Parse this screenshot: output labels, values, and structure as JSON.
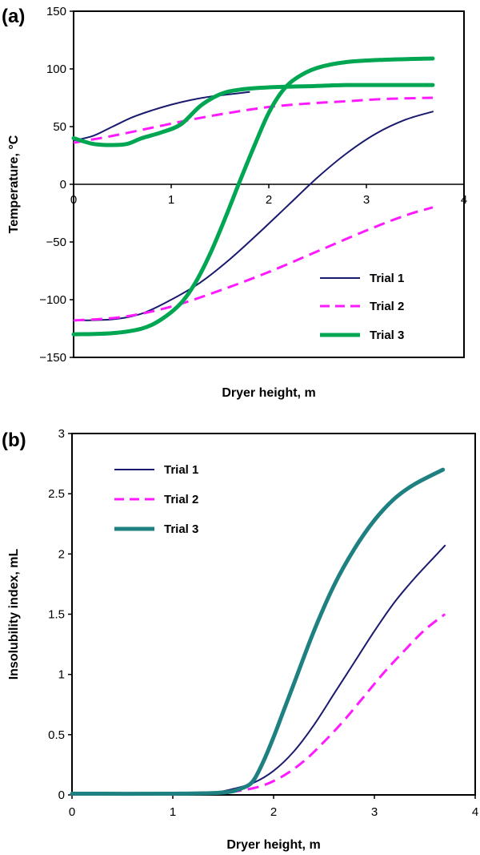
{
  "chart_data": [
    {
      "panel_label": "(a)",
      "type": "line",
      "xlabel": "Dryer height, m",
      "ylabel": "Temperature, °C",
      "xlim": [
        0,
        4
      ],
      "ylim": [
        -150,
        150
      ],
      "xticks": [
        "0",
        "1",
        "2",
        "3",
        "4"
      ],
      "yticks": [
        "150",
        "100",
        "50",
        "0",
        "−50",
        "−100",
        "−150"
      ],
      "legend_position": "bottom-right",
      "series": [
        {
          "name": "Trial 1",
          "color": "#1a1a6e",
          "style": "solid",
          "width": 2,
          "x": [
            0.0,
            0.2,
            0.4,
            0.6,
            0.8,
            1.0,
            1.2,
            1.4,
            1.6,
            1.8
          ],
          "y": [
            38,
            42,
            50,
            58,
            64,
            69,
            73,
            76,
            78,
            80
          ]
        },
        {
          "name": "Trial 1",
          "color": "#1a1a6e",
          "style": "solid",
          "width": 2,
          "x": [
            0.0,
            0.4,
            0.7,
            1.0,
            1.3,
            1.6,
            1.9,
            2.2,
            2.5,
            2.8,
            3.1,
            3.4,
            3.68
          ],
          "y": [
            -118,
            -117,
            -112,
            -100,
            -85,
            -65,
            -42,
            -18,
            6,
            27,
            44,
            56,
            63
          ]
        },
        {
          "name": "Trial 2",
          "color": "#ff1aff",
          "style": "dashed",
          "width": 3,
          "x": [
            0.0,
            0.4,
            0.8,
            1.2,
            1.6,
            2.0,
            2.4,
            2.8,
            3.2,
            3.68
          ],
          "y": [
            36,
            42,
            49,
            56,
            62,
            67,
            70,
            72,
            74,
            75
          ]
        },
        {
          "name": "Trial 2",
          "color": "#ff1aff",
          "style": "dashed",
          "width": 3,
          "x": [
            0.0,
            0.5,
            1.0,
            1.5,
            2.0,
            2.5,
            3.0,
            3.4,
            3.68
          ],
          "y": [
            -118,
            -115,
            -106,
            -92,
            -76,
            -58,
            -40,
            -27,
            -20
          ]
        },
        {
          "name": "Trial 3",
          "color": "#00a651",
          "style": "solid",
          "width": 5,
          "x": [
            0.0,
            0.2,
            0.4,
            0.55,
            0.7,
            0.9,
            1.1,
            1.3,
            1.5,
            1.7,
            2.0,
            2.4,
            2.8,
            3.2,
            3.68
          ],
          "y": [
            40,
            35,
            34,
            35,
            40,
            45,
            52,
            68,
            78,
            82,
            84,
            85,
            86,
            86,
            86
          ]
        },
        {
          "name": "Trial 3",
          "color": "#00a651",
          "style": "solid",
          "width": 5,
          "x": [
            0.0,
            0.4,
            0.7,
            0.9,
            1.1,
            1.25,
            1.4,
            1.55,
            1.7,
            1.85,
            2.0,
            2.15,
            2.3,
            2.5,
            2.8,
            3.2,
            3.68
          ],
          "y": [
            -130,
            -129,
            -125,
            -117,
            -103,
            -85,
            -60,
            -30,
            2,
            33,
            62,
            82,
            93,
            101,
            106,
            108,
            109
          ]
        }
      ]
    },
    {
      "panel_label": "(b)",
      "type": "line",
      "xlabel": "Dryer height, m",
      "ylabel": "Insolubility index, mL",
      "xlim": [
        0,
        4
      ],
      "ylim": [
        0,
        3
      ],
      "xticks": [
        "0",
        "1",
        "2",
        "3",
        "4"
      ],
      "yticks": [
        "3",
        "2.5",
        "2",
        "1.5",
        "1",
        "0.5",
        "0"
      ],
      "legend_position": "top-left",
      "series": [
        {
          "name": "Trial 1",
          "color": "#1a1a6e",
          "style": "solid",
          "width": 2,
          "x": [
            0.0,
            1.0,
            1.4,
            1.6,
            1.8,
            2.0,
            2.2,
            2.4,
            2.6,
            2.8,
            3.0,
            3.2,
            3.4,
            3.6,
            3.7
          ],
          "y": [
            0.01,
            0.01,
            0.02,
            0.05,
            0.1,
            0.2,
            0.36,
            0.58,
            0.84,
            1.1,
            1.36,
            1.6,
            1.8,
            1.98,
            2.07
          ]
        },
        {
          "name": "Trial 2",
          "color": "#ff1aff",
          "style": "dashed",
          "width": 3,
          "x": [
            0.0,
            1.0,
            1.5,
            1.7,
            1.9,
            2.1,
            2.3,
            2.5,
            2.7,
            2.9,
            3.1,
            3.3,
            3.5,
            3.7
          ],
          "y": [
            0.01,
            0.01,
            0.02,
            0.04,
            0.08,
            0.16,
            0.28,
            0.44,
            0.62,
            0.82,
            1.02,
            1.2,
            1.37,
            1.5
          ]
        },
        {
          "name": "Trial 3",
          "color": "#1e8080",
          "style": "solid",
          "width": 5,
          "x": [
            0.0,
            1.0,
            1.5,
            1.7,
            1.8,
            1.9,
            2.0,
            2.1,
            2.2,
            2.4,
            2.6,
            2.8,
            3.0,
            3.2,
            3.4,
            3.68
          ],
          "y": [
            0.01,
            0.01,
            0.02,
            0.06,
            0.12,
            0.28,
            0.48,
            0.7,
            0.92,
            1.36,
            1.74,
            2.04,
            2.28,
            2.46,
            2.58,
            2.7
          ]
        }
      ]
    }
  ]
}
